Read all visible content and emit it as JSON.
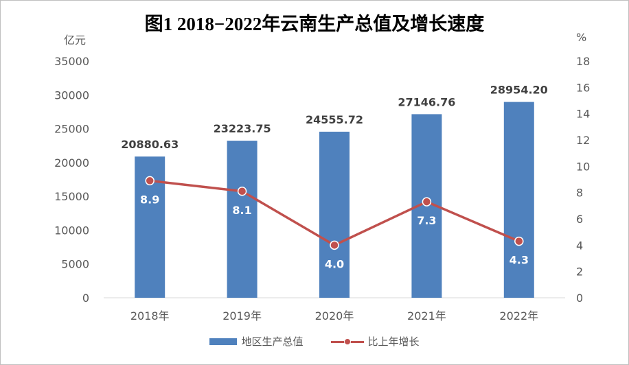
{
  "chart_data": {
    "type": "bar",
    "title": "图1  2018−2022年云南生产总值及增长速度",
    "left_unit": "亿元",
    "right_unit": "%",
    "categories": [
      "2018年",
      "2019年",
      "2020年",
      "2021年",
      "2022年"
    ],
    "series": [
      {
        "name": "地区生产总值",
        "type": "bar",
        "axis": "left",
        "color": "#4f81bd",
        "values": [
          20880.63,
          23223.75,
          24555.72,
          27146.76,
          28954.2
        ],
        "labels": [
          "20880.63",
          "23223.75",
          "24555.72",
          "27146.76",
          "28954.20"
        ]
      },
      {
        "name": "比上年增长",
        "type": "line",
        "axis": "right",
        "color": "#c0504d",
        "values": [
          8.9,
          8.1,
          4.0,
          7.3,
          4.3
        ],
        "labels": [
          "8.9",
          "8.1",
          "4.0",
          "7.3",
          "4.3"
        ]
      }
    ],
    "y_left": {
      "range": [
        0,
        35000
      ],
      "ticks": [
        "0",
        "5000",
        "10000",
        "15000",
        "20000",
        "25000",
        "30000",
        "35000"
      ]
    },
    "y_right": {
      "range": [
        0,
        18
      ],
      "ticks": [
        "0",
        "2",
        "4",
        "6",
        "8",
        "10",
        "12",
        "14",
        "16",
        "18"
      ]
    },
    "grid": false,
    "legend_position": "bottom"
  }
}
